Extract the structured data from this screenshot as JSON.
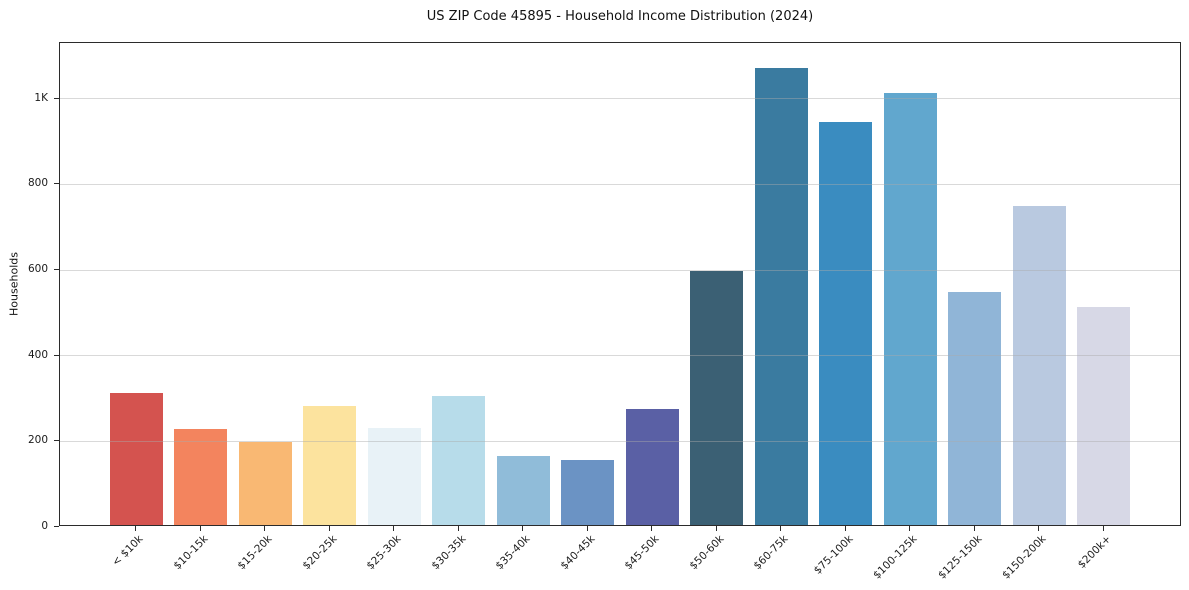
{
  "figure": {
    "background": "#ffffff",
    "axis_color": "#2b2b2b",
    "grid_color": "#dddddd"
  },
  "chart_data": {
    "type": "bar",
    "title": "US ZIP Code 45895 - Household Income Distribution (2024)",
    "xlabel": "",
    "ylabel": "Households",
    "categories": [
      "< $10k",
      "$10-15k",
      "$15-20k",
      "$20-25k",
      "$25-30k",
      "$30-35k",
      "$35-40k",
      "$40-45k",
      "$45-50k",
      "$50-60k",
      "$60-75k",
      "$75-100k",
      "$100-125k",
      "$125-150k",
      "$150-200k",
      "$200k+"
    ],
    "values": [
      308,
      225,
      194,
      279,
      226,
      301,
      162,
      151,
      270,
      592,
      1068,
      941,
      1008,
      545,
      744,
      509
    ],
    "bar_colors": [
      "#d4534f",
      "#f3845e",
      "#f9b873",
      "#fce39e",
      "#e8f2f7",
      "#b7dcea",
      "#90bcd9",
      "#6b93c4",
      "#5a60a5",
      "#3b6074",
      "#3a7ba0",
      "#3a8cc0",
      "#61a7ce",
      "#90b5d7",
      "#b9c9e0",
      "#d7d8e6"
    ],
    "yticks": {
      "values": [
        0,
        200,
        400,
        600,
        800,
        1000
      ],
      "labels": [
        "0",
        "200",
        "400",
        "600",
        "800",
        "1K"
      ]
    },
    "ylim": [
      0,
      1130
    ],
    "grid": "horizontal",
    "legend": "none",
    "x_tick_rotation_deg": 45
  }
}
